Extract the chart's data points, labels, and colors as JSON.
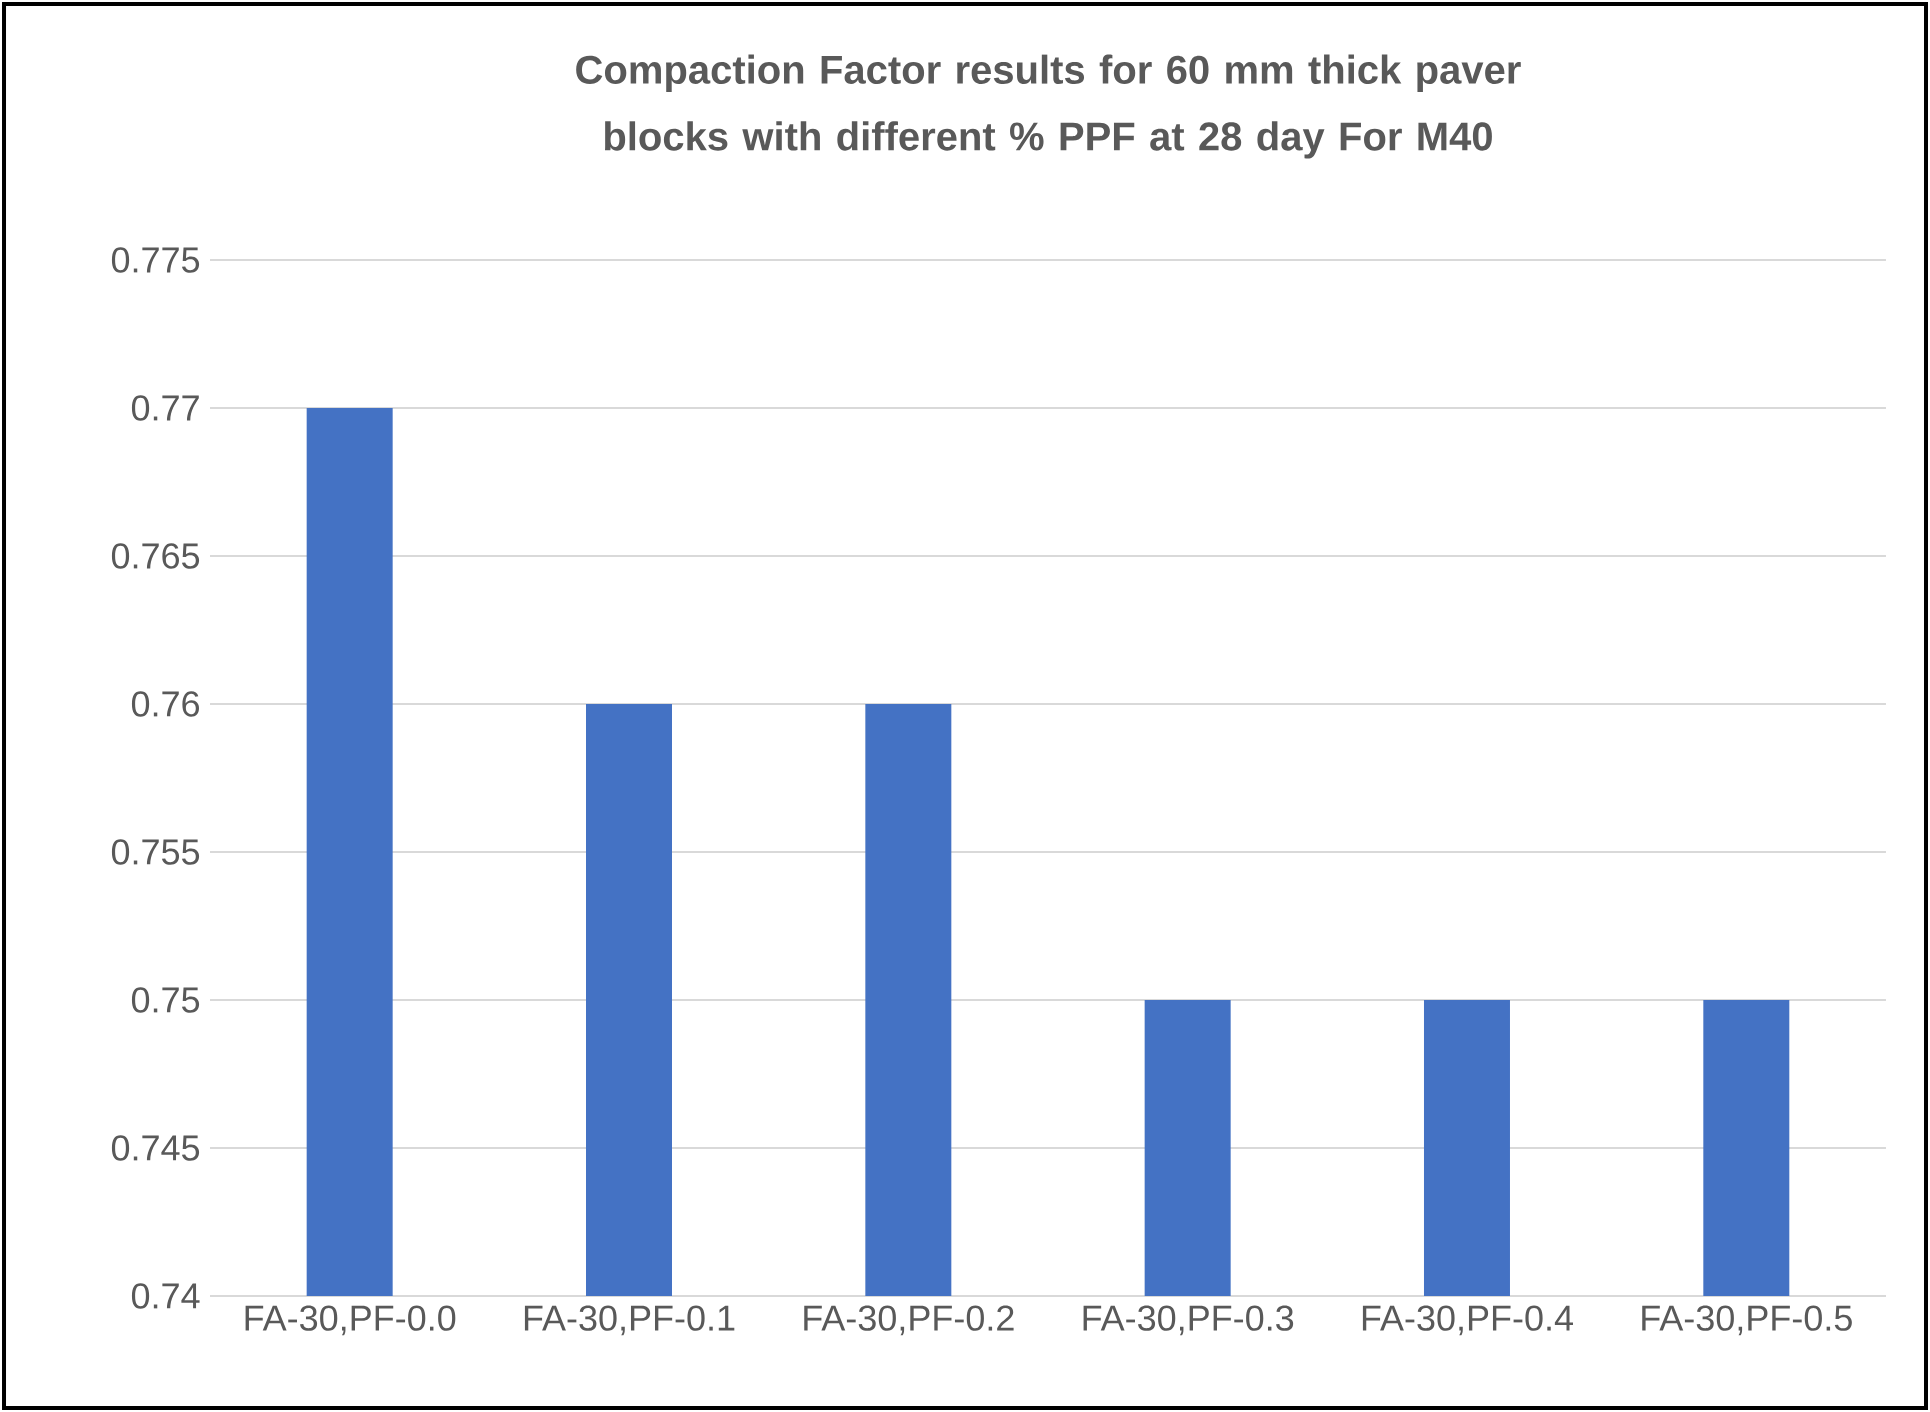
{
  "chart_data": {
    "type": "bar",
    "title": "Compaction Factor results for 60 mm thick paver blocks with different % PPF at 28 day For M40",
    "categories": [
      "FA-30,PF-0.0",
      "FA-30,PF-0.1",
      "FA-30,PF-0.2",
      "FA-30,PF-0.3",
      "FA-30,PF-0.4",
      "FA-30,PF-0.5"
    ],
    "values": [
      0.77,
      0.76,
      0.76,
      0.75,
      0.75,
      0.75
    ],
    "color": "#4472c4",
    "ylim": [
      0.74,
      0.775
    ],
    "yticks": [
      {
        "value": 0.74,
        "label": "0.74"
      },
      {
        "value": 0.745,
        "label": "0.745"
      },
      {
        "value": 0.75,
        "label": "0.75"
      },
      {
        "value": 0.755,
        "label": "0.755"
      },
      {
        "value": 0.76,
        "label": "0.76"
      },
      {
        "value": 0.765,
        "label": "0.765"
      },
      {
        "value": 0.77,
        "label": "0.77"
      },
      {
        "value": 0.775,
        "label": "0.775"
      }
    ],
    "grid": "y"
  }
}
